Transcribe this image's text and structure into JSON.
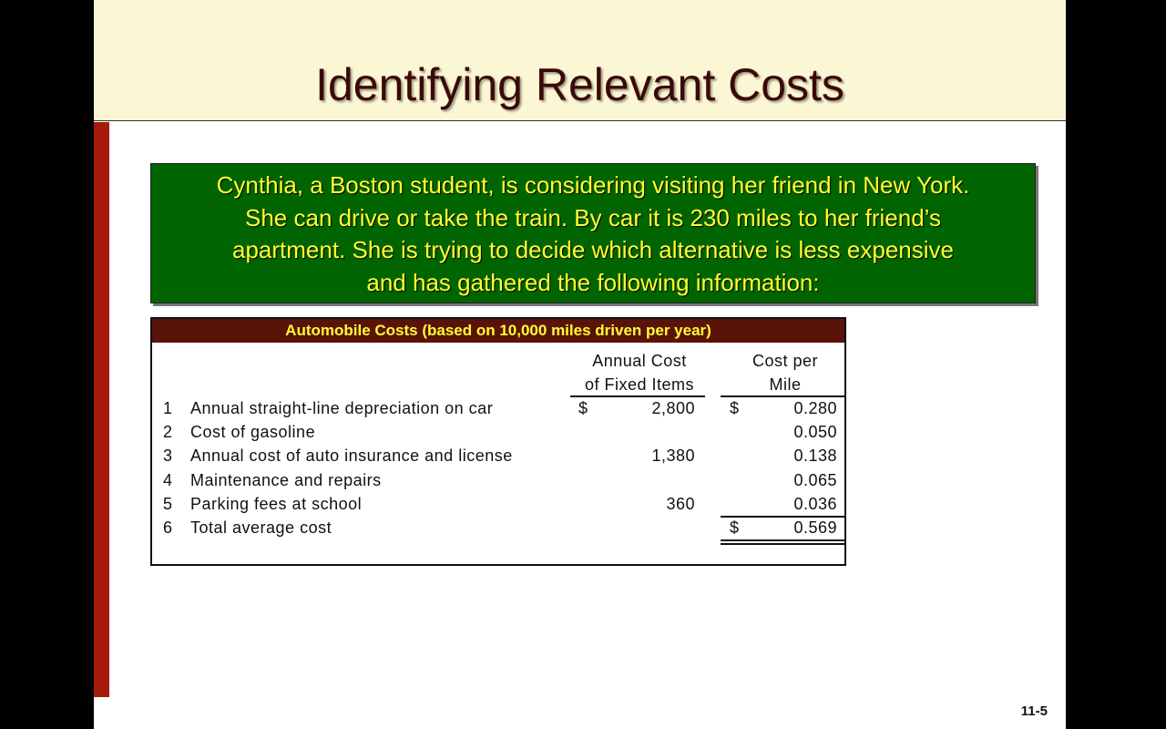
{
  "title": "Identifying Relevant Costs",
  "intro": [
    "Cynthia, a Boston student, is considering visiting her friend in New York.",
    "She can drive or take the train. By car it is 230 miles to her friend’s",
    "apartment. She is trying to decide which alternative is less expensive",
    "and has gathered the following information:"
  ],
  "table": {
    "title": "Automobile Costs (based on 10,000 miles driven per year)",
    "col1": [
      "Annual Cost",
      "of Fixed Items"
    ],
    "col2": [
      "Cost per",
      "Mile"
    ],
    "currency": "$",
    "rows": [
      {
        "num": "1",
        "label": "Annual straight-line depreciation on car",
        "fixed": "2,800",
        "per_mile": "0.280"
      },
      {
        "num": "2",
        "label": "Cost of gasoline",
        "fixed": "",
        "per_mile": "0.050"
      },
      {
        "num": "3",
        "label": "Annual cost of auto insurance and license",
        "fixed": "1,380",
        "per_mile": "0.138"
      },
      {
        "num": "4",
        "label": "Maintenance and repairs",
        "fixed": "",
        "per_mile": "0.065"
      },
      {
        "num": "5",
        "label": "Parking fees at school",
        "fixed": "360",
        "per_mile": "0.036"
      },
      {
        "num": "6",
        "label": "Total average cost",
        "fixed": "",
        "per_mile": "0.569"
      }
    ]
  },
  "page_number": "11-5"
}
